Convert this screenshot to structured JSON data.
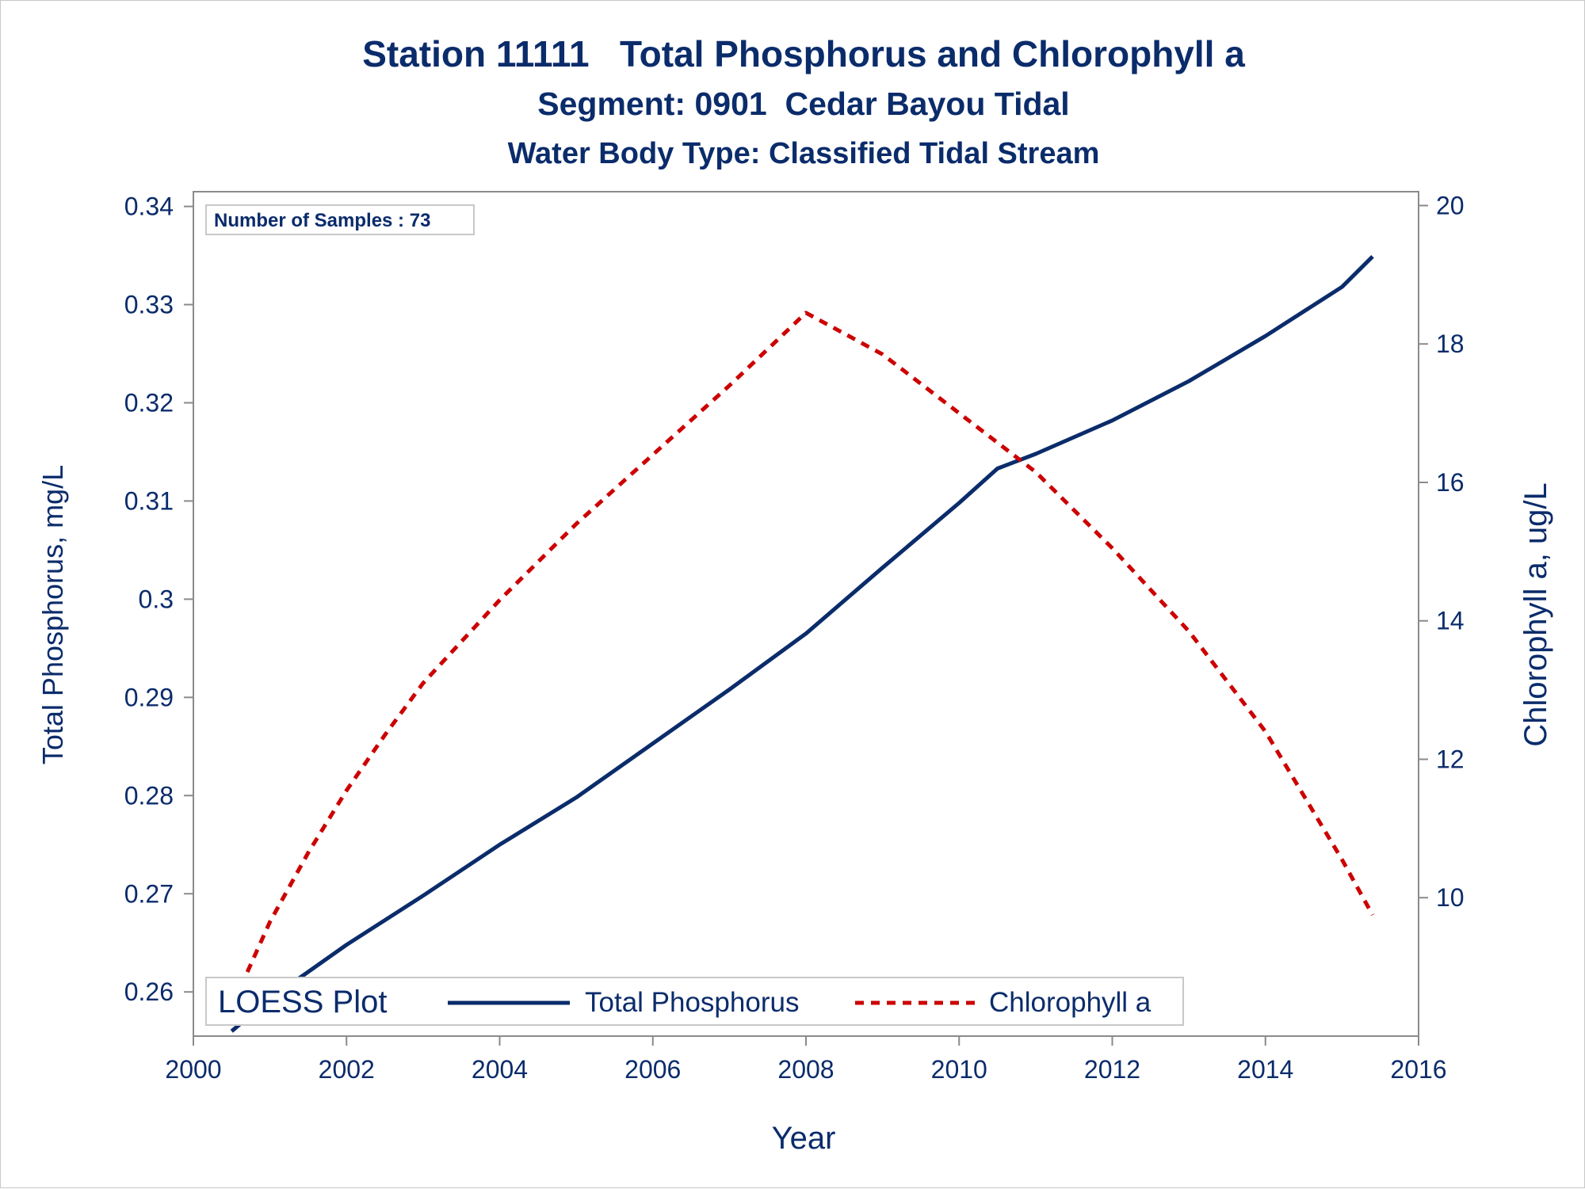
{
  "chart_data": {
    "type": "line",
    "title": "Station 11111   Total Phosphorus and Chlorophyll a",
    "subtitle": "Segment: 0901  Cedar Bayou Tidal",
    "subtitle2": "Water Body Type: Classified Tidal Stream",
    "annotation": "Number of Samples : 73",
    "xlabel": "Year",
    "ylabel": "Total Phosphorus, mg/L",
    "y2label": "Chlorophyll a, ug/L",
    "xlim": [
      2000,
      2016
    ],
    "ylim": [
      0.2555,
      0.3415
    ],
    "y2lim": [
      8.0,
      20.2
    ],
    "x_ticks": [
      2000,
      2002,
      2004,
      2006,
      2008,
      2010,
      2012,
      2014,
      2016
    ],
    "y_ticks": [
      0.26,
      0.27,
      0.28,
      0.29,
      0.3,
      0.31,
      0.32,
      0.33,
      0.34
    ],
    "y_tick_labels": [
      "0.26",
      "0.27",
      "0.28",
      "0.29",
      "0.3",
      "0.31",
      "0.32",
      "0.33",
      "0.34"
    ],
    "y2_ticks": [
      10,
      12,
      14,
      16,
      18,
      20
    ],
    "grid": false,
    "legend": {
      "title": "LOESS Plot",
      "placement": "bottom-left",
      "entries": [
        "Total Phosphorus",
        "Chlorophyll a"
      ]
    },
    "series": [
      {
        "name": "Total Phosphorus",
        "axis": "left",
        "color": "#0b2c6b",
        "style": "solid",
        "x": [
          2000.5,
          2001.0,
          2002.0,
          2003.0,
          2004.0,
          2005.0,
          2006.0,
          2007.0,
          2008.0,
          2009.0,
          2010.0,
          2010.5,
          2011.0,
          2012.0,
          2013.0,
          2014.0,
          2015.0,
          2015.4
        ],
        "y": [
          0.256,
          0.2593,
          0.2648,
          0.2698,
          0.275,
          0.2798,
          0.2853,
          0.2908,
          0.2965,
          0.3032,
          0.3098,
          0.3133,
          0.3148,
          0.3182,
          0.3222,
          0.3268,
          0.3318,
          0.3349
        ]
      },
      {
        "name": "Chlorophyll a",
        "axis": "right",
        "color": "#cc0000",
        "style": "dashed",
        "x": [
          2000.45,
          2001.0,
          2001.5,
          2002.0,
          2002.5,
          2003.0,
          2004.0,
          2005.0,
          2006.0,
          2007.0,
          2008.0,
          2009.0,
          2010.0,
          2011.0,
          2012.0,
          2013.0,
          2014.0,
          2015.0,
          2015.4
        ],
        "y": [
          8.3,
          9.65,
          10.65,
          11.55,
          12.35,
          13.1,
          14.3,
          15.4,
          16.4,
          17.4,
          18.45,
          17.85,
          17.0,
          16.15,
          15.05,
          13.85,
          12.4,
          10.55,
          9.75
        ]
      }
    ]
  }
}
